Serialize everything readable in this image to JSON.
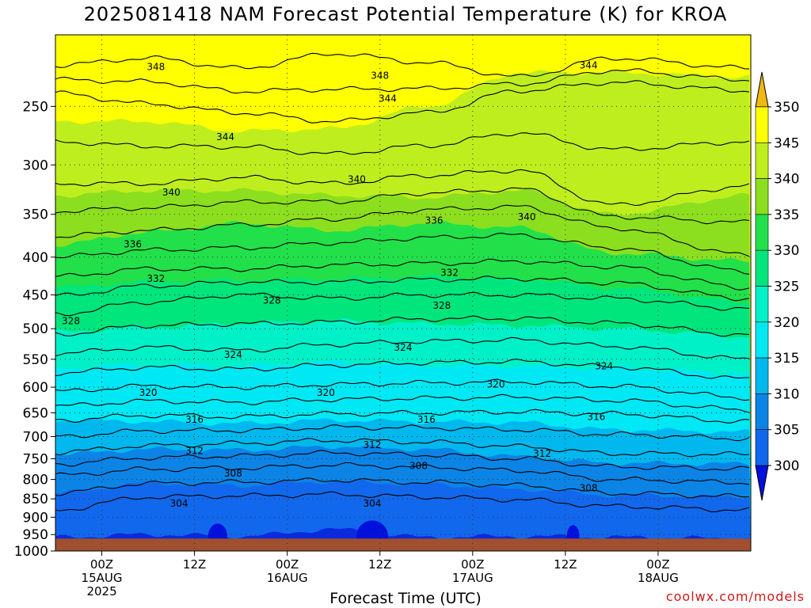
{
  "title": "2025081418 NAM Forecast Potential Temperature (K) for KROA",
  "credit": "coolwx.com/models",
  "chart_data": {
    "type": "heatmap",
    "xlabel": "Forecast Time (UTC)",
    "ylabel": "",
    "x_range_hours": [
      -6,
      84
    ],
    "x_start": "2025-08-14 18Z",
    "x_ticks": [
      {
        "hour": 0,
        "lines": [
          "00Z",
          "15AUG",
          "2025"
        ]
      },
      {
        "hour": 12,
        "lines": [
          "12Z"
        ]
      },
      {
        "hour": 24,
        "lines": [
          "00Z",
          "16AUG"
        ]
      },
      {
        "hour": 36,
        "lines": [
          "12Z"
        ]
      },
      {
        "hour": 48,
        "lines": [
          "00Z",
          "17AUG"
        ]
      },
      {
        "hour": 60,
        "lines": [
          "12Z"
        ]
      },
      {
        "hour": 72,
        "lines": [
          "00Z",
          "18AUG"
        ]
      }
    ],
    "y_ticks": [
      250,
      300,
      350,
      400,
      450,
      500,
      550,
      600,
      650,
      700,
      750,
      800,
      850,
      900,
      950,
      1000
    ],
    "ylim": [
      1000,
      200
    ],
    "y_scale": "log",
    "grid": true,
    "colorbar": {
      "labels": [
        350,
        345,
        340,
        335,
        330,
        325,
        320,
        315,
        310,
        305,
        300
      ],
      "bands": [
        {
          "min": 345,
          "max": 350,
          "color": "#ffff00"
        },
        {
          "min": 340,
          "max": 345,
          "color": "#bfee1e"
        },
        {
          "min": 335,
          "max": 340,
          "color": "#8cdf1e"
        },
        {
          "min": 330,
          "max": 335,
          "color": "#22e04a"
        },
        {
          "min": 325,
          "max": 330,
          "color": "#00e67c"
        },
        {
          "min": 320,
          "max": 325,
          "color": "#00f0c8"
        },
        {
          "min": 315,
          "max": 320,
          "color": "#00e8f4"
        },
        {
          "min": 310,
          "max": 315,
          "color": "#00b8ee"
        },
        {
          "min": 305,
          "max": 310,
          "color": "#0c84e6"
        },
        {
          "min": 300,
          "max": 305,
          "color": "#1268ec"
        },
        {
          "min": 295,
          "max": 300,
          "color": "#0a2ae0"
        }
      ],
      "above_color": "#f0b810",
      "below_color": "#0010dd"
    },
    "ground_color": "#a04f2f",
    "ground_top_pressure": 962,
    "contour_interval": 4,
    "contours": [
      {
        "value": 348,
        "pressure": [
          220,
          215,
          222,
          212,
          218,
          228,
          215,
          222
        ]
      },
      {
        "value": 344,
        "pressure": [
          240,
          248,
          255,
          262,
          255,
          238,
          232,
          238
        ]
      },
      {
        "value": 340,
        "pressure": [
          318,
          318,
          312,
          318,
          310,
          305,
          340,
          320
        ]
      },
      {
        "value": 336,
        "pressure": [
          375,
          368,
          362,
          355,
          345,
          342,
          365,
          398
        ]
      },
      {
        "value": 332,
        "pressure": [
          425,
          415,
          415,
          410,
          408,
          405,
          412,
          440
        ]
      },
      {
        "value": 328,
        "pressure": [
          478,
          460,
          450,
          455,
          450,
          450,
          455,
          470
        ]
      },
      {
        "value": 324,
        "pressure": [
          540,
          530,
          535,
          525,
          520,
          518,
          528,
          550
        ]
      },
      {
        "value": 320,
        "pressure": [
          608,
          598,
          600,
          595,
          592,
          590,
          598,
          620
        ]
      },
      {
        "value": 316,
        "pressure": [
          665,
          655,
          658,
          652,
          650,
          648,
          652,
          668
        ]
      },
      {
        "value": 312,
        "pressure": [
          735,
          720,
          715,
          708,
          712,
          722,
          738,
          740
        ]
      },
      {
        "value": 308,
        "pressure": [
          790,
          775,
          772,
          765,
          770,
          778,
          800,
          808
        ]
      },
      {
        "value": 304,
        "pressure": [
          880,
          845,
          842,
          838,
          845,
          852,
          870,
          880
        ]
      }
    ],
    "x_series_hours": [
      -6,
      6,
      18,
      30,
      42,
      54,
      66,
      84
    ],
    "band_boundaries": [
      {
        "value": 345,
        "pressure": [
          262,
          262,
          270,
          268,
          250,
          225,
          225,
          228
        ]
      },
      {
        "value": 340,
        "pressure": [
          330,
          325,
          325,
          330,
          332,
          325,
          350,
          330
        ]
      },
      {
        "value": 335,
        "pressure": [
          385,
          370,
          360,
          368,
          360,
          365,
          395,
          405
        ]
      },
      {
        "value": 330,
        "pressure": [
          440,
          432,
          430,
          428,
          425,
          428,
          440,
          460
        ]
      },
      {
        "value": 325,
        "pressure": [
          505,
          498,
          492,
          488,
          492,
          495,
          500,
          512
        ]
      },
      {
        "value": 320,
        "pressure": [
          565,
          560,
          562,
          555,
          560,
          562,
          565,
          575
        ]
      },
      {
        "value": 315,
        "pressure": [
          665,
          668,
          672,
          665,
          668,
          670,
          685,
          690
        ]
      },
      {
        "value": 310,
        "pressure": [
          740,
          728,
          730,
          722,
          728,
          745,
          760,
          762
        ]
      },
      {
        "value": 305,
        "pressure": [
          835,
          810,
          815,
          805,
          812,
          825,
          840,
          845
        ]
      },
      {
        "value": 300,
        "pressure": [
          958,
          950,
          955,
          935,
          958,
          955,
          958,
          962
        ]
      }
    ],
    "contour_labels": [
      {
        "value": "348",
        "hour": 7,
        "pressure": 221
      },
      {
        "value": "348",
        "hour": 36,
        "pressure": 227
      },
      {
        "value": "344",
        "hour": 63,
        "pressure": 220
      },
      {
        "value": "344",
        "hour": 37,
        "pressure": 244
      },
      {
        "value": "344",
        "hour": 16,
        "pressure": 275
      },
      {
        "value": "340",
        "hour": 9,
        "pressure": 327
      },
      {
        "value": "340",
        "hour": 33,
        "pressure": 314
      },
      {
        "value": "340",
        "hour": 55,
        "pressure": 353
      },
      {
        "value": "336",
        "hour": 4,
        "pressure": 384
      },
      {
        "value": "336",
        "hour": 43,
        "pressure": 357
      },
      {
        "value": "332",
        "hour": 7,
        "pressure": 428
      },
      {
        "value": "332",
        "hour": 45,
        "pressure": 420
      },
      {
        "value": "328",
        "hour": -4,
        "pressure": 488
      },
      {
        "value": "328",
        "hour": 22,
        "pressure": 458
      },
      {
        "value": "328",
        "hour": 44,
        "pressure": 465
      },
      {
        "value": "324",
        "hour": 17,
        "pressure": 542
      },
      {
        "value": "324",
        "hour": 39,
        "pressure": 530
      },
      {
        "value": "324",
        "hour": 65,
        "pressure": 562
      },
      {
        "value": "320",
        "hour": 6,
        "pressure": 610
      },
      {
        "value": "320",
        "hour": 29,
        "pressure": 610
      },
      {
        "value": "320",
        "hour": 51,
        "pressure": 595
      },
      {
        "value": "316",
        "hour": 12,
        "pressure": 664
      },
      {
        "value": "316",
        "hour": 42,
        "pressure": 664
      },
      {
        "value": "316",
        "hour": 64,
        "pressure": 658
      },
      {
        "value": "312",
        "hour": 12,
        "pressure": 732
      },
      {
        "value": "312",
        "hour": 35,
        "pressure": 718
      },
      {
        "value": "312",
        "hour": 57,
        "pressure": 738
      },
      {
        "value": "308",
        "hour": 17,
        "pressure": 785
      },
      {
        "value": "308",
        "hour": 41,
        "pressure": 767
      },
      {
        "value": "308",
        "hour": 63,
        "pressure": 822
      },
      {
        "value": "304",
        "hour": 10,
        "pressure": 862
      },
      {
        "value": "304",
        "hour": 35,
        "pressure": 862
      }
    ]
  }
}
